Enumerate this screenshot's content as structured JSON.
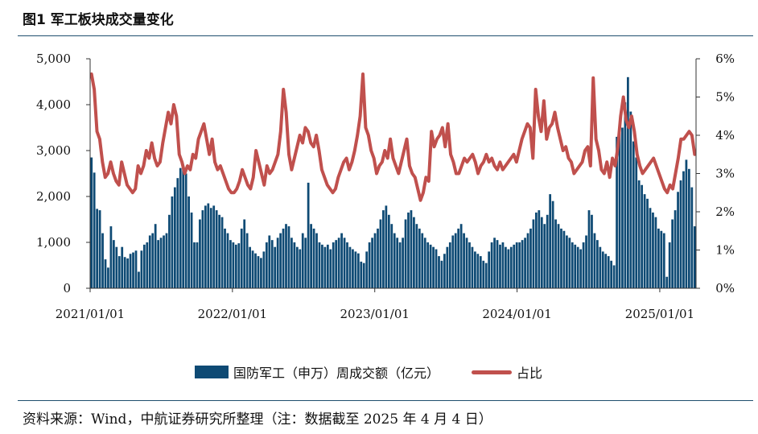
{
  "header": {
    "title": "图1  军工板块成交量变化"
  },
  "footer": {
    "source": "资料来源：Wind，中航证券研究所整理（注：数据截至 2025 年 4 月 4 日）"
  },
  "colors": {
    "bar": "#0e4a74",
    "line": "#c0504d",
    "rule": "#1f4e6e"
  },
  "chart_data": {
    "type": "bar",
    "title": "",
    "x_ticks": [
      "2021/01/01",
      "2022/01/01",
      "2023/01/01",
      "2024/01/01",
      "2025/01/01"
    ],
    "x_range": [
      "2021/01/01",
      "2025/04/04"
    ],
    "y_left": {
      "ticks": [
        "0",
        "1,000",
        "2,000",
        "3,000",
        "4,000",
        "5,000"
      ],
      "lim": [
        0,
        5000
      ]
    },
    "y_right": {
      "ticks": [
        "0%",
        "1%",
        "2%",
        "3%",
        "4%",
        "5%",
        "6%"
      ],
      "lim": [
        0,
        6
      ]
    },
    "grid": false,
    "legend_position": "bottom",
    "series": [
      {
        "name": "国防军工（申万）周成交额（亿元）",
        "type": "bar",
        "axis": "left",
        "values": [
          2850,
          2520,
          1730,
          1700,
          1200,
          630,
          450,
          1350,
          1050,
          900,
          700,
          900,
          680,
          650,
          750,
          780,
          820,
          360,
          820,
          950,
          1000,
          1150,
          1200,
          1400,
          1050,
          1100,
          1150,
          1200,
          1600,
          2000,
          2200,
          2400,
          2620,
          2620,
          2500,
          2000,
          1650,
          1000,
          1000,
          1500,
          1700,
          1800,
          1850,
          1750,
          1800,
          1700,
          1600,
          1550,
          1300,
          1200,
          1050,
          1000,
          950,
          980,
          1300,
          1500,
          1200,
          900,
          820,
          760,
          700,
          660,
          800,
          1000,
          1150,
          1050,
          900,
          1100,
          1200,
          1300,
          1400,
          1350,
          1100,
          1000,
          900,
          850,
          1200,
          1100,
          2300,
          1400,
          1300,
          1200,
          1000,
          950,
          900,
          950,
          850,
          1000,
          1050,
          1100,
          1200,
          1100,
          1000,
          900,
          850,
          800,
          760,
          580,
          550,
          800,
          1000,
          1100,
          1200,
          1300,
          1500,
          1700,
          1800,
          1600,
          1400,
          1200,
          1100,
          1000,
          1100,
          1500,
          1650,
          1700,
          1550,
          1400,
          1300,
          1200,
          1100,
          1000,
          950,
          900,
          850,
          700,
          600,
          750,
          900,
          1000,
          1150,
          1200,
          1300,
          1400,
          1200,
          1100,
          1000,
          900,
          800,
          750,
          700,
          600,
          550,
          800,
          1000,
          1100,
          1050,
          950,
          1000,
          900,
          850,
          900,
          950,
          1000,
          1000,
          1050,
          1100,
          1200,
          1300,
          1500,
          1650,
          1700,
          1550,
          1400,
          1600,
          2050,
          1900,
          1500,
          1400,
          1300,
          1250,
          1150,
          1100,
          1000,
          950,
          900,
          850,
          1000,
          1150,
          1700,
          1600,
          1200,
          1050,
          900,
          800,
          750,
          700,
          600,
          500,
          3300,
          3400,
          3500,
          4050,
          4600,
          3850,
          3200,
          2850,
          2350,
          2250,
          2050,
          1950,
          1750,
          1650,
          1550,
          1300,
          1250,
          1200,
          250,
          1000,
          1500,
          1700,
          2100,
          2350,
          2550,
          2800,
          2600,
          2200,
          1350
        ]
      },
      {
        "name": "占比",
        "type": "line",
        "axis": "right",
        "values": [
          5.6,
          5.2,
          4.1,
          3.9,
          3.3,
          2.9,
          3.0,
          3.3,
          3.0,
          2.8,
          2.7,
          3.3,
          3.0,
          2.7,
          2.6,
          2.5,
          2.6,
          3.2,
          3.0,
          3.2,
          3.6,
          3.4,
          3.8,
          3.4,
          3.2,
          3.3,
          3.8,
          4.2,
          4.6,
          4.3,
          4.8,
          4.5,
          3.5,
          3.3,
          3.0,
          3.2,
          3.1,
          3.5,
          3.4,
          3.9,
          4.1,
          4.3,
          3.9,
          3.5,
          3.9,
          3.3,
          3.1,
          3.2,
          3.0,
          2.8,
          2.6,
          2.5,
          2.5,
          2.6,
          2.8,
          3.1,
          2.9,
          2.7,
          2.6,
          2.9,
          3.6,
          3.3,
          3.0,
          2.7,
          3.2,
          3.0,
          3.1,
          3.3,
          3.5,
          4.1,
          5.2,
          4.6,
          3.5,
          3.1,
          3.4,
          3.7,
          4.0,
          3.8,
          4.2,
          4.1,
          3.8,
          3.7,
          4.0,
          3.6,
          3.1,
          2.9,
          2.7,
          2.6,
          2.5,
          2.6,
          2.9,
          3.1,
          3.3,
          3.4,
          3.1,
          3.3,
          3.6,
          4.0,
          4.5,
          5.6,
          4.2,
          4.0,
          3.6,
          3.4,
          3.0,
          3.2,
          3.3,
          3.6,
          3.4,
          3.9,
          3.4,
          3.2,
          3.0,
          3.3,
          3.6,
          3.9,
          3.2,
          3.0,
          2.9,
          2.6,
          2.3,
          2.5,
          2.9,
          2.8,
          4.1,
          3.7,
          3.9,
          4.0,
          4.2,
          3.7,
          4.3,
          3.5,
          3.3,
          3.0,
          3.0,
          3.2,
          3.4,
          3.3,
          3.4,
          3.5,
          3.3,
          3.0,
          3.2,
          3.3,
          3.5,
          3.3,
          3.4,
          3.2,
          3.1,
          3.3,
          3.1,
          3.2,
          3.3,
          3.4,
          3.5,
          3.3,
          3.6,
          3.9,
          4.1,
          4.3,
          4.2,
          3.4,
          5.2,
          4.5,
          4.1,
          4.9,
          3.9,
          4.2,
          4.3,
          4.6,
          4.2,
          3.9,
          3.6,
          3.7,
          3.4,
          3.3,
          3.0,
          3.1,
          3.2,
          3.3,
          3.6,
          3.7,
          3.2,
          5.5,
          3.9,
          3.6,
          3.1,
          3.0,
          3.3,
          2.9,
          3.4,
          3.2,
          3.7,
          4.5,
          5.0,
          4.4,
          4.2,
          4.5,
          4.1,
          3.5,
          3.2,
          3.0,
          3.1,
          3.2,
          3.3,
          3.4,
          3.2,
          3.0,
          2.8,
          2.6,
          2.5,
          2.7,
          2.6,
          3.0,
          3.4,
          3.9,
          3.9,
          4.0,
          4.1,
          4.0,
          3.5
        ]
      }
    ]
  }
}
